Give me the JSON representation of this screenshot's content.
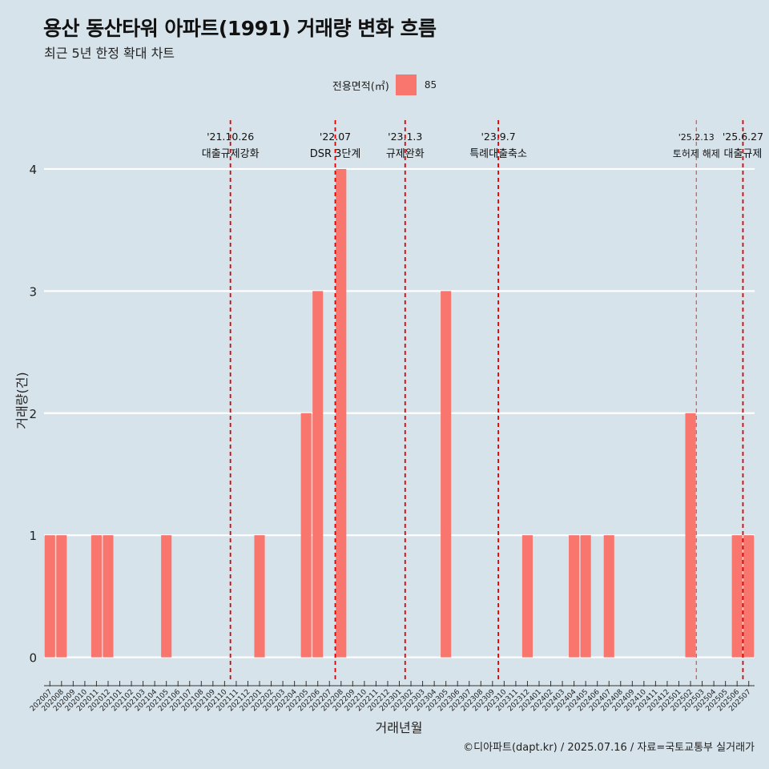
{
  "header": {
    "title": "용산 동산타워 아파트(1991) 거래량 변화 흐름",
    "subtitle": "최근 5년 한정 확대 차트"
  },
  "legend": {
    "title": "전용면적(㎡)",
    "items": [
      {
        "label": "85",
        "color": "#f8766d"
      }
    ]
  },
  "caption": "©디아파트(dapt.kr) / 2025.07.16 / 자료=국토교통부 실거래가",
  "chart_data": {
    "type": "bar",
    "xlabel": "거래년월",
    "ylabel": "거래량(건)",
    "ylim": [
      -0.18,
      4.4
    ],
    "yticks": [
      0,
      1,
      2,
      3,
      4
    ],
    "grid": true,
    "legend_position": "top",
    "bar_color": "#f8766d",
    "categories": [
      "202007",
      "202008",
      "202009",
      "202010",
      "202011",
      "202012",
      "202101",
      "202102",
      "202103",
      "202104",
      "202105",
      "202106",
      "202107",
      "202108",
      "202109",
      "202110",
      "202111",
      "202112",
      "202201",
      "202202",
      "202203",
      "202204",
      "202205",
      "202206",
      "202207",
      "202208",
      "202209",
      "202210",
      "202211",
      "202212",
      "202301",
      "202302",
      "202303",
      "202304",
      "202305",
      "202306",
      "202307",
      "202308",
      "202309",
      "202310",
      "202311",
      "202312",
      "202401",
      "202402",
      "202403",
      "202404",
      "202405",
      "202406",
      "202407",
      "202408",
      "202409",
      "202410",
      "202411",
      "202412",
      "202501",
      "202502",
      "202503",
      "202504",
      "202505",
      "202506",
      "202507"
    ],
    "series": [
      {
        "values": [
          1,
          1,
          0,
          0,
          1,
          1,
          0,
          0,
          0,
          0,
          1,
          0,
          0,
          0,
          0,
          0,
          0,
          0,
          1,
          0,
          0,
          0,
          2,
          3,
          0,
          4,
          0,
          0,
          0,
          0,
          0,
          0,
          0,
          0,
          3,
          0,
          0,
          0,
          0,
          0,
          0,
          1,
          0,
          0,
          0,
          1,
          1,
          0,
          1,
          0,
          0,
          0,
          0,
          0,
          0,
          2,
          0,
          0,
          0,
          1,
          1
        ]
      }
    ],
    "annotations": [
      {
        "date": "'21.10.26",
        "text": "대출규제강화",
        "position": 15.5,
        "style": "dashed"
      },
      {
        "date": "'22.07",
        "text": "DSR 3단계",
        "position": 24.5,
        "style": "dashed"
      },
      {
        "date": "'23.1.3",
        "text": "규제완화",
        "position": 30.5,
        "style": "dashed"
      },
      {
        "date": "'23.9.7",
        "text": "특례대출축소",
        "position": 38.5,
        "style": "dashed"
      },
      {
        "date": "'25.2.13",
        "text": "토허제 해제",
        "position": 55.5,
        "style": "dashed-light"
      },
      {
        "date": "'25.6.27",
        "text": "대출규제",
        "position": 59.5,
        "style": "dashed"
      }
    ]
  }
}
